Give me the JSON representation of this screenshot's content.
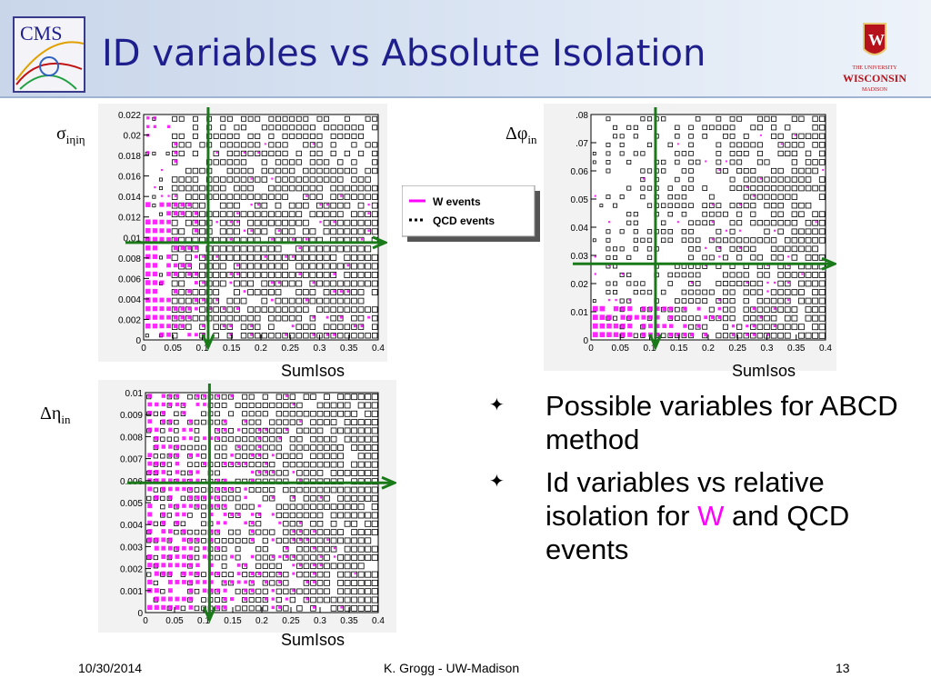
{
  "header": {
    "title": "ID variables vs Absolute Isolation",
    "cms_logo_text": "CMS",
    "university_line1": "THE UNIVERSITY",
    "university_line2": "WISCONSIN",
    "university_line3": "MADISON"
  },
  "panels": {
    "p1": {
      "ylabel": "σ",
      "ylabel_sub": "iηiη",
      "xlabel": "SumIsos"
    },
    "p2": {
      "ylabel": "Δφ",
      "ylabel_sub": "in",
      "xlabel": "SumIsos"
    },
    "p3": {
      "ylabel": "Δη",
      "ylabel_sub": "in",
      "xlabel": "SumIsos"
    }
  },
  "legend": {
    "w_label": "W events",
    "qcd_label": "QCD events"
  },
  "bullets": [
    {
      "text": "Possible variables for ABCD method"
    },
    {
      "text_before": "Id variables vs relative isolation for",
      "highlight": "W",
      "text_after": "and QCD events"
    }
  ],
  "footer": {
    "date": "10/30/2014",
    "author": "K. Grogg - UW-Madison",
    "page": "13"
  },
  "colors": {
    "w_series": "#ff00ff",
    "qcd_series": "#000000",
    "arrow": "#1a7a1a",
    "title": "#1e1e8c"
  },
  "chart_data": [
    {
      "type": "scatter",
      "x": [
        0,
        0.05,
        0.1,
        0.15,
        0.2,
        0.25,
        0.3,
        0.35,
        0.4
      ],
      "xlim": [
        0,
        0.4
      ],
      "ylim": [
        0,
        0.022
      ],
      "yticks": [
        "0",
        "0.002",
        "0.004",
        "0.006",
        "0.008",
        "0.01",
        "0.012",
        "0.014",
        "0.016",
        "0.018",
        "0.02",
        "0.022"
      ],
      "xticks": [
        "0",
        "0.05",
        "0.1",
        "0.15",
        "0.2",
        "0.25",
        "0.3",
        "0.35",
        "0.4"
      ],
      "series": [
        {
          "name": "W events"
        },
        {
          "name": "QCD events"
        }
      ],
      "cut_x": 0.11,
      "cut_y": 0.0095
    },
    {
      "type": "scatter",
      "xlim": [
        0,
        0.4
      ],
      "ylim": [
        0,
        0.08
      ],
      "yticks": [
        "0",
        "0.01",
        "0.02",
        "0.03",
        "0.04",
        "0.05",
        "0.06",
        ".07",
        ".08"
      ],
      "xticks": [
        "0",
        "0.05",
        "0.1",
        "0.15",
        "0.2",
        "0.25",
        "0.3",
        "0.35",
        "0.4"
      ],
      "series": [
        {
          "name": "W events"
        },
        {
          "name": "QCD events"
        }
      ],
      "cut_x": 0.11,
      "cut_y": 0.027
    },
    {
      "type": "scatter",
      "xlim": [
        0,
        0.4
      ],
      "ylim": [
        0,
        0.01
      ],
      "yticks": [
        "0",
        "0.001",
        "0.002",
        "0.003",
        "0.004",
        "0.005",
        "0.006",
        "0.007",
        "0.008",
        "0.009",
        "0.01"
      ],
      "xticks": [
        "0",
        "0.05",
        "0.1",
        "0.15",
        "0.2",
        "0.25",
        "0.3",
        "0.35",
        "0.4"
      ],
      "series": [
        {
          "name": "W events"
        },
        {
          "name": "QCD events"
        }
      ],
      "cut_x": 0.11,
      "cut_y": 0.0059
    }
  ]
}
